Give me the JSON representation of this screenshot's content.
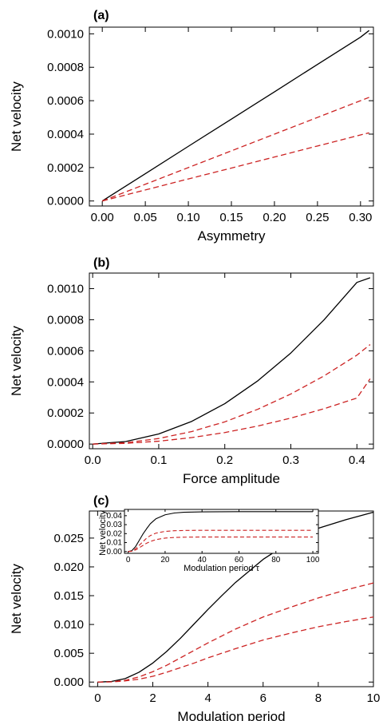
{
  "chart_data": [
    {
      "type": "line",
      "panel_label": "(a)",
      "xlabel": "Asymmetry",
      "ylabel": "Net velocity",
      "xlim": [
        -0.015,
        0.315
      ],
      "ylim": [
        -3e-05,
        0.00104
      ],
      "xticks": [
        0.0,
        0.05,
        0.1,
        0.15,
        0.2,
        0.25,
        0.3
      ],
      "xtick_labels": [
        "0.00",
        "0.05",
        "0.10",
        "0.15",
        "0.20",
        "0.25",
        "0.30"
      ],
      "yticks": [
        0.0,
        0.0002,
        0.0004,
        0.0006,
        0.0008,
        0.001
      ],
      "ytick_labels": [
        "0.0000",
        "0.0002",
        "0.0004",
        "0.0006",
        "0.0008",
        "0.0010"
      ],
      "series": [
        {
          "color": "#000000",
          "dash": "solid",
          "x": [
            0,
            0.05,
            0.1,
            0.15,
            0.2,
            0.25,
            0.3,
            0.31
          ],
          "y": [
            0,
            0.000163,
            0.000327,
            0.00049,
            0.000653,
            0.000817,
            0.00098,
            0.00102
          ]
        },
        {
          "color": "#cc2222",
          "dash": "dashed",
          "x": [
            0,
            0.05,
            0.1,
            0.15,
            0.2,
            0.25,
            0.3,
            0.31
          ],
          "y": [
            0,
            0.0001,
            0.0002,
            0.0003,
            0.0004,
            0.0005,
            0.0006,
            0.00062
          ]
        },
        {
          "color": "#cc2222",
          "dash": "dashed",
          "x": [
            0,
            0.05,
            0.1,
            0.15,
            0.2,
            0.25,
            0.3,
            0.31
          ],
          "y": [
            0,
            6.6e-05,
            0.000132,
            0.000197,
            0.000263,
            0.000329,
            0.000395,
            0.000408
          ]
        }
      ]
    },
    {
      "type": "line",
      "panel_label": "(b)",
      "xlabel": "Force amplitude",
      "ylabel": "Net velocity",
      "xlim": [
        -0.005,
        0.425
      ],
      "ylim": [
        -3e-05,
        0.0011
      ],
      "xticks": [
        0.0,
        0.1,
        0.2,
        0.3,
        0.4
      ],
      "xtick_labels": [
        "0.0",
        "0.1",
        "0.2",
        "0.3",
        "0.4"
      ],
      "yticks": [
        0.0,
        0.0002,
        0.0004,
        0.0006,
        0.0008,
        0.001
      ],
      "ytick_labels": [
        "0.0000",
        "0.0002",
        "0.0004",
        "0.0006",
        "0.0008",
        "0.0010"
      ],
      "series": [
        {
          "color": "#000000",
          "dash": "solid",
          "x": [
            0,
            0.05,
            0.1,
            0.15,
            0.2,
            0.25,
            0.3,
            0.35,
            0.4,
            0.42
          ],
          "y": [
            0,
            1.62e-05,
            6.52e-05,
            0.000146,
            0.00026,
            0.000407,
            0.000586,
            0.000798,
            0.00104,
            0.00107
          ]
        },
        {
          "color": "#cc2222",
          "dash": "dashed",
          "x": [
            0,
            0.05,
            0.1,
            0.15,
            0.2,
            0.25,
            0.3,
            0.35,
            0.4,
            0.42
          ],
          "y": [
            0,
            8.9e-06,
            3.58e-05,
            8.06e-05,
            0.000143,
            0.000224,
            0.000322,
            0.000438,
            0.000572,
            0.00064
          ]
        },
        {
          "color": "#cc2222",
          "dash": "dashed",
          "x": [
            0,
            0.05,
            0.1,
            0.15,
            0.2,
            0.25,
            0.3,
            0.35,
            0.4,
            0.42
          ],
          "y": [
            0,
            4.6e-06,
            1.85e-05,
            4.17e-05,
            7.41e-05,
            0.000116,
            0.000167,
            0.000227,
            0.000296,
            0.00042
          ]
        }
      ]
    },
    {
      "type": "line",
      "panel_label": "(c)",
      "xlabel": "Modulation period",
      "ylabel": "Net velocity",
      "xlim": [
        -0.3,
        10.0
      ],
      "ylim": [
        -0.0008,
        0.0297
      ],
      "xticks": [
        0,
        2,
        4,
        6,
        8,
        10
      ],
      "xtick_labels": [
        "0",
        "2",
        "4",
        "6",
        "8",
        "10"
      ],
      "yticks": [
        0.0,
        0.005,
        0.01,
        0.015,
        0.02,
        0.025
      ],
      "ytick_labels": [
        "0.000",
        "0.005",
        "0.010",
        "0.015",
        "0.020",
        "0.025"
      ],
      "series": [
        {
          "color": "#000000",
          "dash": "solid",
          "x": [
            0,
            0.5,
            1,
            1.5,
            2,
            2.5,
            3,
            3.5,
            4,
            4.5,
            5,
            6,
            7,
            8,
            9,
            10
          ],
          "y": [
            0,
            0.0001,
            0.0006,
            0.0017,
            0.0033,
            0.0053,
            0.0076,
            0.0101,
            0.0126,
            0.015,
            0.0173,
            0.0213,
            0.0244,
            0.0267,
            0.0282,
            0.0295
          ]
        },
        {
          "color": "#cc2222",
          "dash": "dashed",
          "x": [
            0,
            0.5,
            1,
            1.5,
            2,
            2.5,
            3,
            3.5,
            4,
            4.5,
            5,
            6,
            7,
            8,
            9,
            10
          ],
          "y": [
            0,
            5e-05,
            0.0003,
            0.0009,
            0.0018,
            0.0029,
            0.0042,
            0.0055,
            0.0068,
            0.008,
            0.0092,
            0.0113,
            0.013,
            0.0146,
            0.016,
            0.0172
          ]
        },
        {
          "color": "#cc2222",
          "dash": "dashed",
          "x": [
            0,
            0.5,
            1,
            1.5,
            2,
            2.5,
            3,
            3.5,
            4,
            4.5,
            5,
            6,
            7,
            8,
            9,
            10
          ],
          "y": [
            0,
            3e-05,
            0.0002,
            0.0005,
            0.001,
            0.0017,
            0.0025,
            0.0033,
            0.0042,
            0.005,
            0.0058,
            0.0073,
            0.0085,
            0.0096,
            0.0105,
            0.0113
          ]
        }
      ],
      "inset": {
        "type": "line",
        "xlabel": "Modulation period τ",
        "ylabel": "Net velocity",
        "xlim": [
          -2,
          103
        ],
        "ylim": [
          -0.002,
          0.047
        ],
        "xticks": [
          0,
          20,
          40,
          60,
          80,
          100
        ],
        "xtick_labels": [
          "0",
          "20",
          "40",
          "60",
          "80",
          "100"
        ],
        "yticks": [
          0.0,
          0.01,
          0.02,
          0.03,
          0.04
        ],
        "ytick_labels": [
          "0.00",
          "0.01",
          "0.02",
          "0.03",
          "0.04"
        ],
        "series": [
          {
            "color": "#000000",
            "dash": "solid",
            "x": [
              0,
              2,
              4,
              6,
              8,
              10,
              12,
              15,
              20,
              25,
              30,
              40,
              50,
              60,
              80,
              100
            ],
            "y": [
              0,
              0.001,
              0.0055,
              0.0125,
              0.0195,
              0.0255,
              0.031,
              0.0365,
              0.041,
              0.043,
              0.0438,
              0.0443,
              0.0444,
              0.0445,
              0.0445,
              0.0445
            ]
          },
          {
            "color": "#cc2222",
            "dash": "dashed",
            "x": [
              0,
              2,
              4,
              6,
              8,
              10,
              12,
              15,
              20,
              25,
              30,
              40,
              50,
              60,
              80,
              100
            ],
            "y": [
              0,
              0.0005,
              0.003,
              0.007,
              0.011,
              0.015,
              0.0178,
              0.0205,
              0.0225,
              0.0232,
              0.0235,
              0.0237,
              0.0237,
              0.0237,
              0.0237,
              0.0237
            ]
          },
          {
            "color": "#cc2222",
            "dash": "dashed",
            "x": [
              0,
              2,
              4,
              6,
              8,
              10,
              12,
              15,
              20,
              25,
              30,
              40,
              50,
              60,
              80,
              100
            ],
            "y": [
              0,
              0.0003,
              0.0018,
              0.0042,
              0.0068,
              0.0093,
              0.0112,
              0.0133,
              0.015,
              0.0157,
              0.016,
              0.0162,
              0.0162,
              0.0162,
              0.0162,
              0.0162
            ]
          }
        ]
      }
    }
  ]
}
